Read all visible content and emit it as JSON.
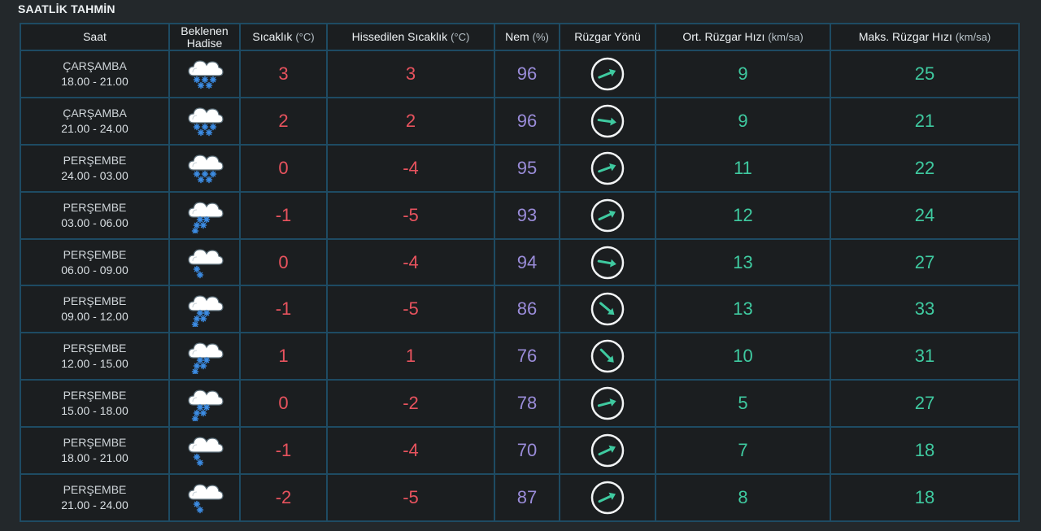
{
  "title": "SAATLİK TAHMİN",
  "headers": {
    "saat": "Saat",
    "hadise_1": "Beklenen",
    "hadise_2": "Hadise",
    "sicaklik": "Sıcaklık",
    "sicaklik_unit": "(°C)",
    "hissedilen": "Hissedilen Sıcaklık",
    "hissedilen_unit": "(°C)",
    "nem": "Nem",
    "nem_unit": "(%)",
    "ruzgar_yonu": "Rüzgar Yönü",
    "ort_ruzgar": "Ort. Rüzgar Hızı",
    "ort_ruzgar_unit": "(km/sa)",
    "maks_ruzgar": "Maks. Rüzgar Hızı",
    "maks_ruzgar_unit": "(km/sa)"
  },
  "colors": {
    "temperature": "#e8535e",
    "humidity": "#9a8cd9",
    "wind": "#3fcaa0",
    "border": "#1e4b63"
  },
  "rows": [
    {
      "day": "ÇARŞAMBA",
      "time": "18.00 - 21.00",
      "icon": "snow-heavy-icon",
      "temp": "3",
      "feels": "3",
      "humidity": "96",
      "wind_dir_deg": -22,
      "wind_avg": "9",
      "wind_max": "25"
    },
    {
      "day": "ÇARŞAMBA",
      "time": "21.00 - 24.00",
      "icon": "snow-heavy-icon",
      "temp": "2",
      "feels": "2",
      "humidity": "96",
      "wind_dir_deg": 8,
      "wind_avg": "9",
      "wind_max": "21"
    },
    {
      "day": "PERŞEMBE",
      "time": "24.00 - 03.00",
      "icon": "snow-heavy-icon",
      "temp": "0",
      "feels": "-4",
      "humidity": "95",
      "wind_dir_deg": -20,
      "wind_avg": "11",
      "wind_max": "22"
    },
    {
      "day": "PERŞEMBE",
      "time": "03.00 - 06.00",
      "icon": "snow-moderate-icon",
      "temp": "-1",
      "feels": "-5",
      "humidity": "93",
      "wind_dir_deg": -25,
      "wind_avg": "12",
      "wind_max": "24"
    },
    {
      "day": "PERŞEMBE",
      "time": "06.00 - 09.00",
      "icon": "snow-light-icon",
      "temp": "0",
      "feels": "-4",
      "humidity": "94",
      "wind_dir_deg": 10,
      "wind_avg": "13",
      "wind_max": "27"
    },
    {
      "day": "PERŞEMBE",
      "time": "09.00 - 12.00",
      "icon": "snow-moderate-icon",
      "temp": "-1",
      "feels": "-5",
      "humidity": "86",
      "wind_dir_deg": 40,
      "wind_avg": "13",
      "wind_max": "33"
    },
    {
      "day": "PERŞEMBE",
      "time": "12.00 - 15.00",
      "icon": "snow-moderate-icon",
      "temp": "1",
      "feels": "1",
      "humidity": "76",
      "wind_dir_deg": 45,
      "wind_avg": "10",
      "wind_max": "31"
    },
    {
      "day": "PERŞEMBE",
      "time": "15.00 - 18.00",
      "icon": "snow-moderate-icon",
      "temp": "0",
      "feels": "-2",
      "humidity": "78",
      "wind_dir_deg": -15,
      "wind_avg": "5",
      "wind_max": "27"
    },
    {
      "day": "PERŞEMBE",
      "time": "18.00 - 21.00",
      "icon": "snow-light-icon",
      "temp": "-1",
      "feels": "-4",
      "humidity": "70",
      "wind_dir_deg": -25,
      "wind_avg": "7",
      "wind_max": "18"
    },
    {
      "day": "PERŞEMBE",
      "time": "21.00 - 24.00",
      "icon": "snow-light-icon",
      "temp": "-2",
      "feels": "-5",
      "humidity": "87",
      "wind_dir_deg": -25,
      "wind_avg": "8",
      "wind_max": "18"
    }
  ]
}
